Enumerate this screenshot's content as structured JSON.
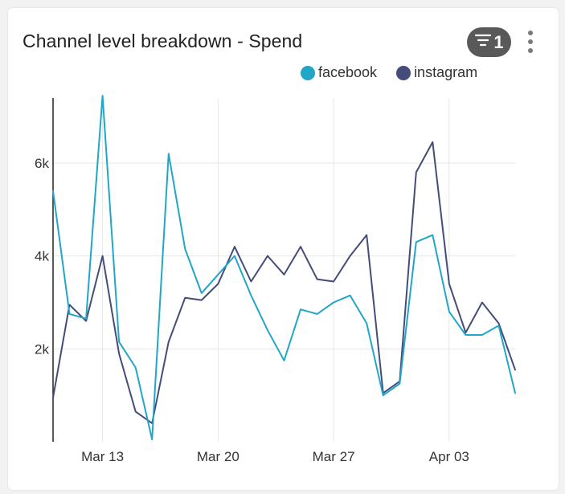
{
  "widget": {
    "title": "Channel level breakdown - Spend",
    "filter_count": "1",
    "filter_icon": "filter-icon",
    "menu_icon": "more-vertical-icon"
  },
  "chart_data": {
    "type": "line",
    "title": "Channel level breakdown - Spend",
    "xlabel": "",
    "ylabel": "",
    "x_ticks": [
      "Mar 13",
      "Mar 20",
      "Mar 27",
      "Apr 03"
    ],
    "y_ticks": [
      "2k",
      "4k",
      "6k"
    ],
    "ylim": [
      0,
      7400
    ],
    "x_start": "Mar 10",
    "x_end": "Apr 07",
    "grid": true,
    "legend_position": "top-right",
    "series": [
      {
        "name": "facebook",
        "color": "#21a6c7",
        "values": [
          5400,
          2750,
          2650,
          7450,
          2150,
          1600,
          50,
          6200,
          4150,
          3200,
          3600,
          4000,
          3150,
          2400,
          1750,
          2850,
          2750,
          3000,
          3150,
          2550,
          1000,
          1250,
          4300,
          4450,
          2800,
          2300,
          2300,
          2500,
          1050
        ]
      },
      {
        "name": "instagram",
        "color": "#444c7a",
        "values": [
          950,
          2950,
          2600,
          4000,
          1900,
          650,
          400,
          2150,
          3100,
          3050,
          3400,
          4200,
          3450,
          4000,
          3600,
          4200,
          3500,
          3450,
          4000,
          4450,
          1050,
          1300,
          5800,
          6450,
          3400,
          2350,
          3000,
          2550,
          1550
        ]
      }
    ]
  }
}
